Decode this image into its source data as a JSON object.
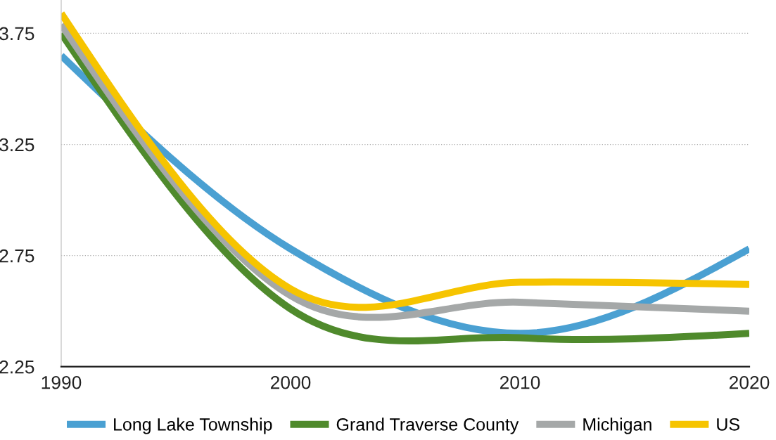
{
  "chart_data": {
    "type": "line",
    "x": [
      1990,
      2000,
      2010,
      2020
    ],
    "xlim": [
      1990,
      2020
    ],
    "xticks": [
      1990,
      2000,
      2010,
      2020
    ],
    "ylim": [
      2.25,
      3.9
    ],
    "yticks": [
      2.25,
      2.75,
      3.25,
      3.75
    ],
    "grid": "y",
    "legend": "bottom",
    "series": [
      {
        "name": "Long Lake Township",
        "color": "#4aa0d2",
        "values": [
          3.65,
          2.78,
          2.4,
          2.78
        ]
      },
      {
        "name": "Grand Traverse County",
        "color": "#4f8a2c",
        "values": [
          3.75,
          2.51,
          2.38,
          2.4
        ]
      },
      {
        "name": "Michigan",
        "color": "#a5a8a8",
        "values": [
          3.79,
          2.57,
          2.54,
          2.5
        ]
      },
      {
        "name": "US",
        "color": "#f6c400",
        "values": [
          3.84,
          2.6,
          2.63,
          2.62
        ]
      }
    ]
  }
}
